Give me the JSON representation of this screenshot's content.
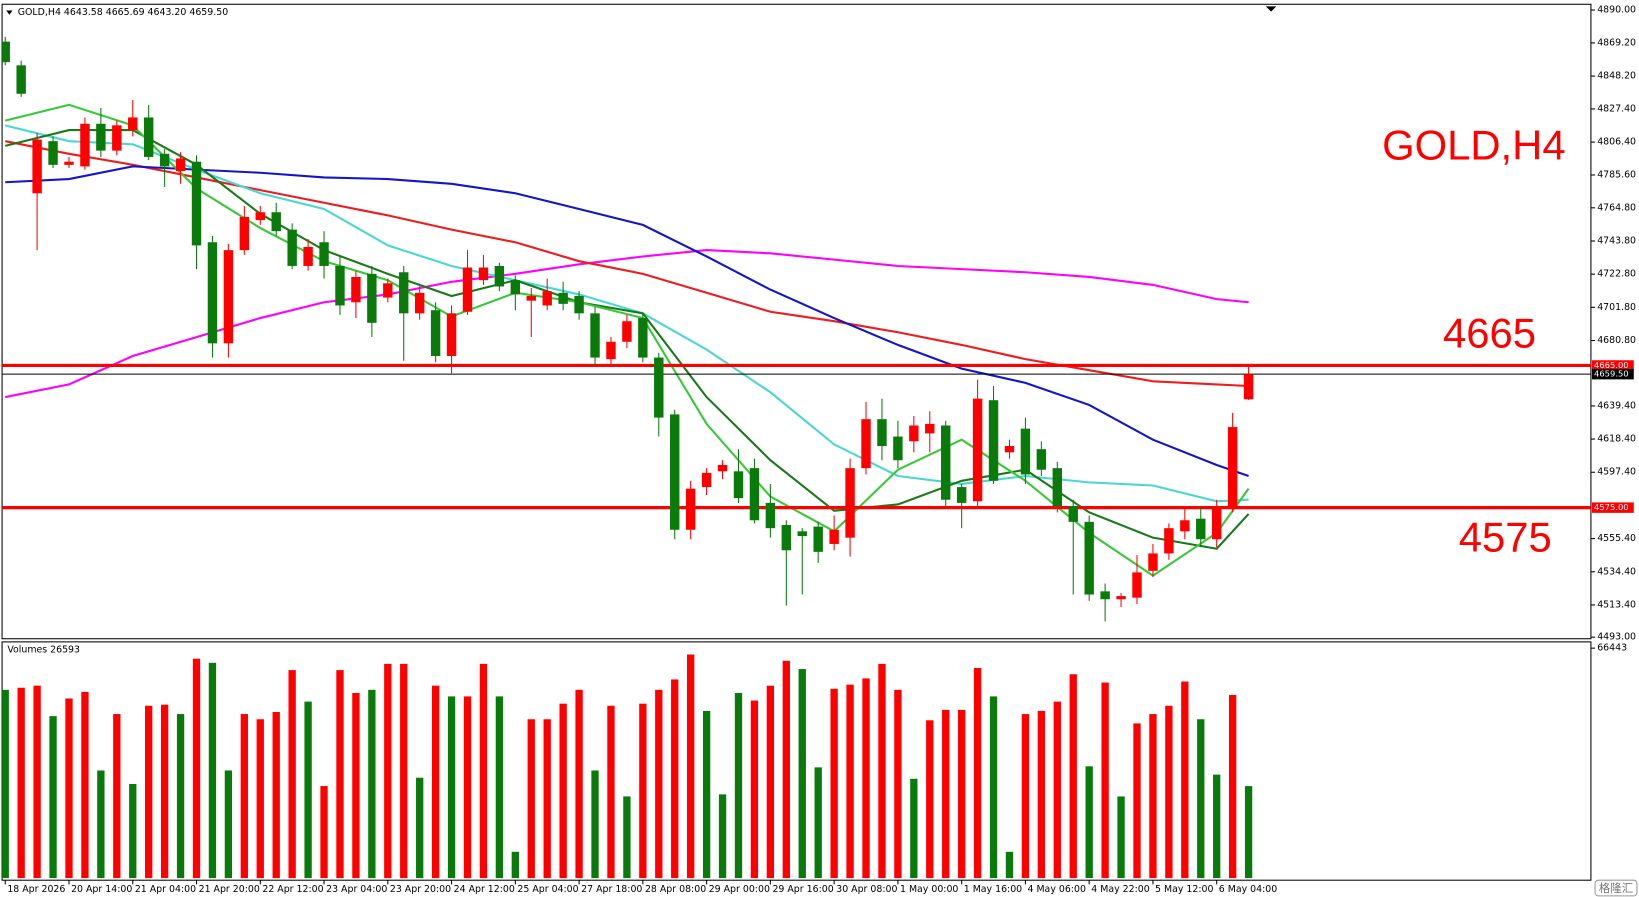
{
  "chart_data": {
    "type": "candlestick",
    "header": "GOLD,H4  4643.58 4665.69 4643.20 4659.50",
    "annotations": [
      "GOLD,H4",
      "4665",
      "4575"
    ],
    "up_color": "#ff0000",
    "down_color": "#0a7a0a",
    "ylim": [
      4492,
      4893
    ],
    "yticks": [
      {
        "value": 4890,
        "label": "4890.00"
      },
      {
        "value": 4869.2,
        "label": "4869.20"
      },
      {
        "value": 4848.2,
        "label": "4848.20"
      },
      {
        "value": 4827.4,
        "label": "4827.40"
      },
      {
        "value": 4806.4,
        "label": "4806.40"
      },
      {
        "value": 4785.6,
        "label": "4785.60"
      },
      {
        "value": 4764.8,
        "label": "4764.80"
      },
      {
        "value": 4743.8,
        "label": "4743.80"
      },
      {
        "value": 4722.8,
        "label": "4722.80"
      },
      {
        "value": 4701.8,
        "label": "4701.80"
      },
      {
        "value": 4680.8,
        "label": "4680.80"
      },
      {
        "value": 4639.4,
        "label": "4639.40"
      },
      {
        "value": 4618.4,
        "label": "4618.40"
      },
      {
        "value": 4597.4,
        "label": "4597.40"
      },
      {
        "value": 4555.4,
        "label": "4555.40"
      },
      {
        "value": 4534.4,
        "label": "4534.40"
      },
      {
        "value": 4513.4,
        "label": "4513.40"
      },
      {
        "value": 4493,
        "label": "4493.00"
      }
    ],
    "levels": [
      {
        "value": 4665,
        "label": "4665.00",
        "color": "#ff0000",
        "bold": true
      },
      {
        "value": 4575,
        "label": "4575.00",
        "color": "#ff0000",
        "bold": true
      },
      {
        "value": 4659.5,
        "label": "4659.50",
        "color": "#000000",
        "bold": false
      }
    ],
    "categories": [
      "18 Apr 2026",
      null,
      null,
      null,
      "20 Apr 14:00",
      null,
      null,
      null,
      "21 Apr 04:00",
      null,
      null,
      null,
      "21 Apr 20:00",
      null,
      null,
      null,
      "22 Apr 12:00",
      null,
      null,
      null,
      "23 Apr 04:00",
      null,
      null,
      null,
      "23 Apr 20:00",
      null,
      null,
      null,
      "24 Apr 12:00",
      null,
      null,
      null,
      "25 Apr 04:00",
      null,
      null,
      null,
      "27 Apr 18:00",
      null,
      null,
      null,
      "28 Apr 08:00",
      null,
      null,
      null,
      "29 Apr 00:00",
      null,
      null,
      null,
      "29 Apr 16:00",
      null,
      null,
      null,
      "30 Apr 08:00",
      null,
      null,
      null,
      "1 May 00:00",
      null,
      null,
      null,
      "1 May 16:00",
      null,
      null,
      null,
      "4 May 06:00",
      null,
      null,
      null,
      "4 May 22:00",
      null,
      null,
      null,
      "5 May 12:00",
      null,
      null,
      null,
      "6 May 04:00",
      null,
      null
    ],
    "open": [
      4870,
      4855,
      4774,
      4807,
      4792,
      4791,
      4818,
      4801,
      4814,
      4822,
      4799,
      4788,
      4794,
      4743,
      4679,
      4738,
      4757,
      4762,
      4751,
      4728,
      4743,
      4728,
      4705,
      4723,
      4708,
      4724,
      4698,
      4700,
      4671,
      4699,
      4719,
      4728,
      4719,
      4706,
      4703,
      4711,
      4709,
      4698,
      4669,
      4680,
      4695,
      4670,
      4634,
      4561,
      4588,
      4598,
      4598,
      4600,
      4578,
      4564,
      4560,
      4563,
      4552,
      4556,
      4600,
      4631,
      4620,
      4617,
      4622,
      4627,
      4588,
      4579,
      4643,
      4610,
      4625,
      4612,
      4600,
      4576,
      4566,
      4522,
      4517,
      4518,
      4535,
      4546,
      4560,
      4568,
      4555,
      4575,
      4643.58
    ],
    "high": [
      4873,
      4858,
      4812,
      4810,
      4797,
      4822,
      4828,
      4820,
      4833,
      4830,
      4802,
      4800,
      4798,
      4747,
      4742,
      4766,
      4766,
      4768,
      4755,
      4745,
      4750,
      4735,
      4725,
      4728,
      4720,
      4728,
      4715,
      4705,
      4703,
      4738,
      4735,
      4730,
      4722,
      4714,
      4720,
      4718,
      4712,
      4702,
      4683,
      4697,
      4698,
      4673,
      4637,
      4592,
      4600,
      4605,
      4612,
      4606,
      4590,
      4567,
      4562,
      4566,
      4570,
      4606,
      4642,
      4644,
      4630,
      4633,
      4636,
      4630,
      4590,
      4656,
      4652,
      4618,
      4632,
      4617,
      4604,
      4580,
      4570,
      4527,
      4521,
      4545,
      4552,
      4565,
      4575,
      4575,
      4580,
      4635,
      4665.69
    ],
    "low": [
      4855,
      4835,
      4738,
      4790,
      4790,
      4789,
      4797,
      4798,
      4810,
      4795,
      4778,
      4780,
      4726,
      4670,
      4670,
      4735,
      4754,
      4747,
      4726,
      4725,
      4720,
      4697,
      4695,
      4683,
      4705,
      4668,
      4694,
      4667,
      4660,
      4697,
      4716,
      4712,
      4700,
      4683,
      4700,
      4700,
      4694,
      4665,
      4666,
      4676,
      4667,
      4620,
      4555,
      4555,
      4583,
      4593,
      4578,
      4565,
      4556,
      4513,
      4520,
      4540,
      4548,
      4544,
      4596,
      4605,
      4600,
      4610,
      4610,
      4576,
      4562,
      4575,
      4590,
      4606,
      4590,
      4595,
      4572,
      4520,
      4516,
      4503,
      4512,
      4514,
      4531,
      4542,
      4555,
      4550,
      4550,
      4572,
      4643.2
    ],
    "close": [
      4857,
      4837,
      4808,
      4792,
      4794,
      4818,
      4801,
      4817,
      4822,
      4797,
      4791,
      4796,
      4741,
      4679,
      4738,
      4759,
      4762,
      4750,
      4728,
      4740,
      4728,
      4703,
      4721,
      4692,
      4717,
      4698,
      4711,
      4671,
      4698,
      4727,
      4727,
      4715,
      4710,
      4709,
      4712,
      4704,
      4698,
      4670,
      4680,
      4693,
      4670,
      4632,
      4561,
      4587,
      4597,
      4602,
      4581,
      4567,
      4562,
      4548,
      4557,
      4547,
      4561,
      4600,
      4631,
      4614,
      4605,
      4627,
      4628,
      4580,
      4578,
      4644,
      4592,
      4614,
      4596,
      4599,
      4576,
      4566,
      4520,
      4517,
      4519,
      4534,
      4546,
      4562,
      4567,
      4555,
      4575,
      4626,
      4659.5
    ],
    "ma_lines": [
      {
        "color": "#ff00ff",
        "x": [
          0,
          4,
          8,
          12,
          16,
          20,
          24,
          28,
          32,
          36,
          40,
          44,
          48,
          52,
          56,
          60,
          64,
          68,
          72,
          76,
          78
        ],
        "values": [
          4645,
          4653,
          4671,
          4683,
          4695,
          4705,
          4710,
          4718,
          4723,
          4729,
          4734,
          4738,
          4736,
          4732,
          4728,
          4726,
          4724,
          4721,
          4716,
          4707,
          4705
        ]
      },
      {
        "color": "#ee1c1c",
        "x": [
          0,
          4,
          8,
          12,
          16,
          20,
          24,
          28,
          32,
          36,
          40,
          44,
          48,
          52,
          56,
          60,
          64,
          68,
          72,
          76,
          78
        ],
        "values": [
          4807,
          4799,
          4792,
          4784,
          4776,
          4768,
          4760,
          4751,
          4743,
          4731,
          4723,
          4711,
          4699,
          4693,
          4686,
          4678,
          4669,
          4662,
          4655,
          4653,
          4652
        ]
      },
      {
        "color": "#1414cc",
        "x": [
          0,
          4,
          8,
          12,
          16,
          20,
          24,
          28,
          32,
          36,
          40,
          44,
          48,
          52,
          56,
          60,
          64,
          68,
          72,
          76,
          78
        ],
        "values": [
          4781,
          4783,
          4791,
          4789,
          4787,
          4784,
          4783,
          4780,
          4774,
          4764,
          4754,
          4734,
          4713,
          4695,
          4678,
          4663,
          4654,
          4640,
          4618,
          4602,
          4595
        ]
      },
      {
        "color": "#48d8d0",
        "x": [
          0,
          4,
          8,
          12,
          16,
          20,
          24,
          28,
          32,
          36,
          40,
          44,
          48,
          52,
          56,
          60,
          64,
          68,
          72,
          76,
          78
        ],
        "values": [
          4817,
          4807,
          4805,
          4789,
          4774,
          4764,
          4741,
          4728,
          4719,
          4710,
          4698,
          4675,
          4648,
          4615,
          4595,
          4590,
          4595,
          4591,
          4589,
          4579,
          4580
        ]
      },
      {
        "color": "#1a7a1a",
        "x": [
          0,
          4,
          8,
          12,
          16,
          20,
          24,
          28,
          32,
          36,
          40,
          44,
          48,
          52,
          56,
          60,
          64,
          68,
          72,
          76,
          78
        ],
        "values": [
          4804,
          4814,
          4814,
          4792,
          4761,
          4738,
          4723,
          4709,
          4719,
          4705,
          4698,
          4645,
          4605,
          4573,
          4577,
          4592,
          4599,
          4572,
          4556,
          4549,
          4571
        ]
      },
      {
        "color": "#38c838",
        "x": [
          0,
          4,
          8,
          12,
          16,
          20,
          24,
          28,
          32,
          36,
          40,
          44,
          48,
          52,
          56,
          60,
          64,
          68,
          72,
          76,
          78
        ],
        "values": [
          4820,
          4830,
          4817,
          4777,
          4752,
          4731,
          4719,
          4696,
          4711,
          4705,
          4695,
          4628,
          4582,
          4560,
          4599,
          4618,
          4592,
          4559,
          4532,
          4559,
          4587
        ]
      }
    ],
    "volume": {
      "label": "Volumes 26593",
      "ylim": [
        0,
        66443
      ],
      "yticks": [
        66443
      ],
      "values": [
        54400,
        55000,
        55600,
        46800,
        51900,
        53800,
        31100,
        47400,
        27200,
        49800,
        50100,
        47400,
        63400,
        62200,
        31100,
        47400,
        45900,
        48000,
        60100,
        51000,
        26600,
        60100,
        53500,
        54400,
        61900,
        61900,
        29000,
        55600,
        52500,
        52500,
        61900,
        52500,
        7600,
        45900,
        45900,
        50400,
        54400,
        31100,
        49800,
        23600,
        50400,
        54400,
        57400,
        64600,
        48300,
        24200,
        53500,
        51300,
        55600,
        62800,
        60400,
        32000,
        54700,
        55900,
        57700,
        61900,
        54400,
        28700,
        45600,
        48600,
        48600,
        60700,
        52500,
        7600,
        47400,
        48300,
        51000,
        58900,
        32300,
        56500,
        23600,
        44700,
        47400,
        49800,
        56800,
        45900,
        29900,
        52900,
        26593
      ],
      "colors": [
        "#0a7a0a",
        "#ff0000",
        "#ff0000",
        "#0a7a0a",
        "#ff0000",
        "#ff0000",
        "#0a7a0a",
        "#ff0000",
        "#0a7a0a",
        "#ff0000",
        "#ff0000",
        "#0a7a0a",
        "#ff0000",
        "#0a7a0a",
        "#0a7a0a",
        "#ff0000",
        "#ff0000",
        "#ff0000",
        "#ff0000",
        "#0a7a0a",
        "#ff0000",
        "#ff0000",
        "#ff0000",
        "#0a7a0a",
        "#ff0000",
        "#ff0000",
        "#0a7a0a",
        "#ff0000",
        "#0a7a0a",
        "#ff0000",
        "#ff0000",
        "#0a7a0a",
        "#0a7a0a",
        "#ff0000",
        "#ff0000",
        "#ff0000",
        "#ff0000",
        "#0a7a0a",
        "#ff0000",
        "#0a7a0a",
        "#ff0000",
        "#ff0000",
        "#ff0000",
        "#ff0000",
        "#0a7a0a",
        "#0a7a0a",
        "#0a7a0a",
        "#ff0000",
        "#ff0000",
        "#ff0000",
        "#0a7a0a",
        "#0a7a0a",
        "#ff0000",
        "#ff0000",
        "#ff0000",
        "#ff0000",
        "#ff0000",
        "#0a7a0a",
        "#ff0000",
        "#ff0000",
        "#ff0000",
        "#ff0000",
        "#0a7a0a",
        "#0a7a0a",
        "#ff0000",
        "#ff0000",
        "#ff0000",
        "#ff0000",
        "#0a7a0a",
        "#ff0000",
        "#0a7a0a",
        "#ff0000",
        "#ff0000",
        "#ff0000",
        "#ff0000",
        "#0a7a0a",
        "#0a7a0a",
        "#ff0000",
        "#0a7a0a"
      ]
    },
    "watermark": "格隆汇"
  }
}
